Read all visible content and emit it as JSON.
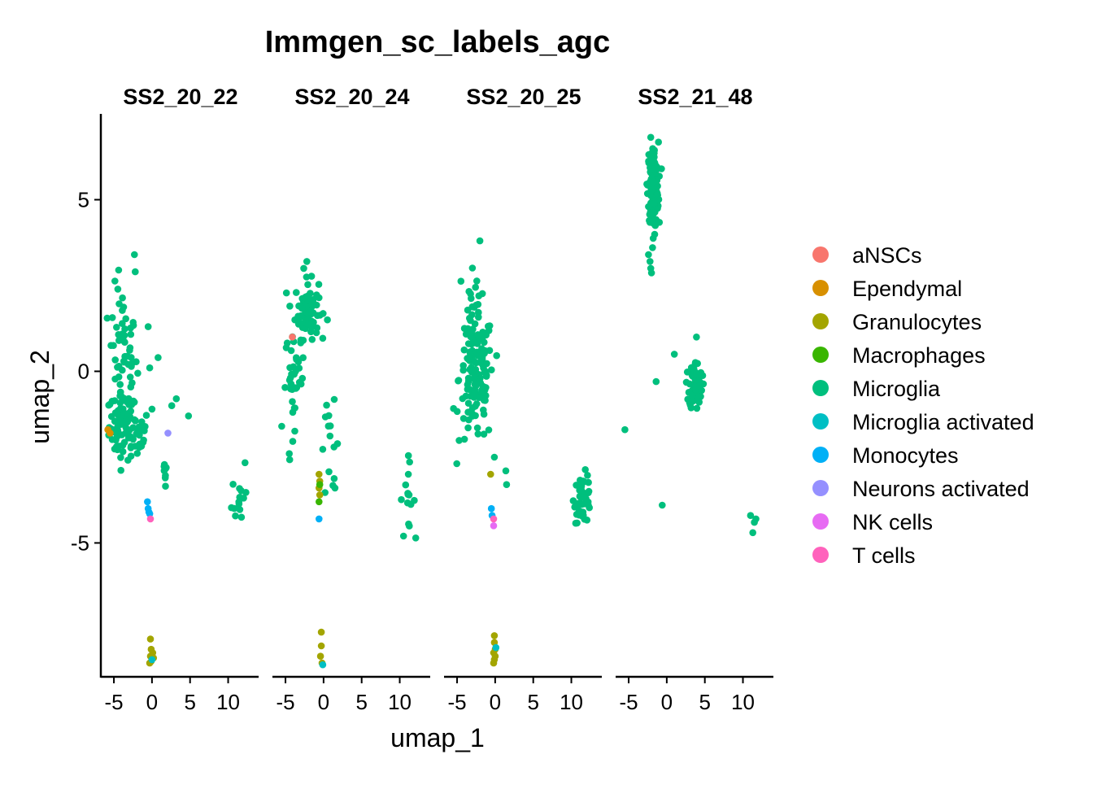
{
  "chart_data": {
    "type": "scatter",
    "title": "Immgen_sc_labels_agc",
    "xlabel": "umap_1",
    "ylabel": "umap_2",
    "xlim": [
      -6.5,
      14
    ],
    "ylim": [
      -8.9,
      7.5
    ],
    "xticks": [
      -5,
      0,
      5,
      10
    ],
    "xtick_labels": [
      "-5",
      "0",
      "5",
      "10"
    ],
    "yticks": [
      5,
      0,
      -5
    ],
    "ytick_labels": [
      "5",
      "0",
      "-5"
    ],
    "legend_position": "right",
    "legend": [
      {
        "label": "aNSCs",
        "color": "#F8766D"
      },
      {
        "label": "Ependymal",
        "color": "#D89000"
      },
      {
        "label": "Granulocytes",
        "color": "#A3A500"
      },
      {
        "label": "Macrophages",
        "color": "#39B600"
      },
      {
        "label": "Microglia",
        "color": "#00BF7D"
      },
      {
        "label": "Microglia activated",
        "color": "#00BFC4"
      },
      {
        "label": "Monocytes",
        "color": "#00B0F6"
      },
      {
        "label": "Neurons activated",
        "color": "#9590FF"
      },
      {
        "label": "NK cells",
        "color": "#E76BF3"
      },
      {
        "label": "T cells",
        "color": "#FF62BC"
      }
    ],
    "panels": [
      {
        "name": "SS2_20_22",
        "clusters": [
          {
            "label": "Microglia",
            "cx": -3.8,
            "cy": -1.6,
            "sx": 1.3,
            "sy": 0.7,
            "n": 70
          },
          {
            "label": "Microglia",
            "cx": -3.8,
            "cy": 0.5,
            "sx": 1.3,
            "sy": 1.4,
            "n": 55
          },
          {
            "label": "Microglia",
            "cx": -2.0,
            "cy": -1.8,
            "sx": 1.2,
            "sy": 0.5,
            "n": 25
          },
          {
            "label": "Microglia",
            "cx": 1.8,
            "cy": -3.0,
            "sx": 0.3,
            "sy": 0.4,
            "n": 8
          },
          {
            "label": "Microglia",
            "cx": 11.5,
            "cy": -3.5,
            "sx": 0.7,
            "sy": 0.8,
            "n": 14
          }
        ],
        "points": [
          {
            "x": -2.3,
            "y": 3.4,
            "label": "Microglia"
          },
          {
            "x": -2.2,
            "y": 2.9,
            "label": "Microglia"
          },
          {
            "x": -0.5,
            "y": 1.3,
            "label": "Microglia"
          },
          {
            "x": -0.3,
            "y": 0.1,
            "label": "Microglia"
          },
          {
            "x": 0.8,
            "y": 0.4,
            "label": "Microglia"
          },
          {
            "x": 3.2,
            "y": -0.8,
            "label": "Microglia"
          },
          {
            "x": 2.6,
            "y": -1.0,
            "label": "Microglia"
          },
          {
            "x": 4.8,
            "y": -1.3,
            "label": "Microglia"
          },
          {
            "x": 0.0,
            "y": -1.1,
            "label": "Microglia"
          },
          {
            "x": -5.8,
            "y": -1.7,
            "label": "Ependymal"
          },
          {
            "x": -5.5,
            "y": -1.8,
            "label": "Ependymal"
          },
          {
            "x": 2.1,
            "y": -1.8,
            "label": "Neurons activated"
          },
          {
            "x": -0.6,
            "y": -3.8,
            "label": "Monocytes"
          },
          {
            "x": -0.5,
            "y": -4.0,
            "label": "Monocytes"
          },
          {
            "x": -0.4,
            "y": -4.1,
            "label": "Monocytes"
          },
          {
            "x": -0.3,
            "y": -4.15,
            "label": "Monocytes"
          },
          {
            "x": -0.2,
            "y": -4.3,
            "label": "T cells"
          },
          {
            "x": -0.2,
            "y": -7.8,
            "label": "Granulocytes"
          },
          {
            "x": -0.1,
            "y": -8.1,
            "label": "Granulocytes"
          },
          {
            "x": 0.1,
            "y": -8.2,
            "label": "Granulocytes"
          },
          {
            "x": -0.2,
            "y": -8.3,
            "label": "Granulocytes"
          },
          {
            "x": 0.2,
            "y": -8.35,
            "label": "Granulocytes"
          },
          {
            "x": -0.1,
            "y": -8.45,
            "label": "Granulocytes"
          },
          {
            "x": -0.3,
            "y": -8.5,
            "label": "Granulocytes"
          },
          {
            "x": 0.0,
            "y": -8.4,
            "label": "Microglia activated"
          }
        ]
      },
      {
        "name": "SS2_20_24",
        "clusters": [
          {
            "label": "Microglia",
            "cx": -2.2,
            "cy": 1.8,
            "sx": 1.1,
            "sy": 0.6,
            "n": 80
          },
          {
            "label": "Microglia",
            "cx": -3.8,
            "cy": -0.2,
            "sx": 0.9,
            "sy": 1.0,
            "n": 35
          },
          {
            "label": "Microglia",
            "cx": 0.8,
            "cy": -2.2,
            "sx": 0.9,
            "sy": 0.9,
            "n": 14
          },
          {
            "label": "Microglia",
            "cx": 11.0,
            "cy": -3.6,
            "sx": 0.7,
            "sy": 0.7,
            "n": 14
          }
        ],
        "points": [
          {
            "x": -2.2,
            "y": 3.2,
            "label": "Microglia"
          },
          {
            "x": -2.6,
            "y": 3.0,
            "label": "Microglia"
          },
          {
            "x": 0.5,
            "y": 1.5,
            "label": "Microglia"
          },
          {
            "x": -5.5,
            "y": -1.6,
            "label": "Microglia"
          },
          {
            "x": -4.5,
            "y": -2.4,
            "label": "Microglia"
          },
          {
            "x": 1.5,
            "y": -3.4,
            "label": "Microglia"
          },
          {
            "x": 10.5,
            "y": -4.8,
            "label": "Microglia"
          },
          {
            "x": -4.1,
            "y": 1.0,
            "label": "aNSCs"
          },
          {
            "x": -0.6,
            "y": -3.0,
            "label": "Granulocytes"
          },
          {
            "x": -0.5,
            "y": -3.2,
            "label": "Granulocytes"
          },
          {
            "x": -0.6,
            "y": -3.4,
            "label": "Granulocytes"
          },
          {
            "x": -0.5,
            "y": -3.6,
            "label": "Granulocytes"
          },
          {
            "x": -0.6,
            "y": -3.8,
            "label": "Macrophages"
          },
          {
            "x": -0.5,
            "y": -3.3,
            "label": "Macrophages"
          },
          {
            "x": -0.6,
            "y": -4.3,
            "label": "Monocytes"
          },
          {
            "x": -0.3,
            "y": -7.6,
            "label": "Granulocytes"
          },
          {
            "x": -0.3,
            "y": -8.0,
            "label": "Granulocytes"
          },
          {
            "x": -0.4,
            "y": -8.3,
            "label": "Granulocytes"
          },
          {
            "x": -0.2,
            "y": -8.5,
            "label": "Granulocytes"
          },
          {
            "x": -0.1,
            "y": -8.55,
            "label": "Microglia activated"
          }
        ]
      },
      {
        "name": "SS2_20_25",
        "clusters": [
          {
            "label": "Microglia",
            "cx": -2.5,
            "cy": -0.2,
            "sx": 1.6,
            "sy": 1.4,
            "n": 140
          },
          {
            "label": "Microglia",
            "cx": -2.5,
            "cy": 2.2,
            "sx": 1.0,
            "sy": 0.6,
            "n": 12
          },
          {
            "label": "Microglia",
            "cx": 11.5,
            "cy": -3.7,
            "sx": 0.8,
            "sy": 0.5,
            "n": 45
          }
        ],
        "points": [
          {
            "x": -2.0,
            "y": 3.8,
            "label": "Microglia"
          },
          {
            "x": -0.1,
            "y": -2.5,
            "label": "Microglia"
          },
          {
            "x": 1.4,
            "y": -2.9,
            "label": "Microglia"
          },
          {
            "x": 1.5,
            "y": -3.3,
            "label": "Microglia"
          },
          {
            "x": -0.6,
            "y": -3.0,
            "label": "Granulocytes"
          },
          {
            "x": -0.5,
            "y": -4.0,
            "label": "Monocytes"
          },
          {
            "x": -0.4,
            "y": -4.2,
            "label": "Monocytes"
          },
          {
            "x": -0.2,
            "y": -4.3,
            "label": "T cells"
          },
          {
            "x": -0.2,
            "y": -4.5,
            "label": "NK cells"
          },
          {
            "x": -0.1,
            "y": -7.7,
            "label": "Granulocytes"
          },
          {
            "x": -0.1,
            "y": -7.9,
            "label": "Granulocytes"
          },
          {
            "x": 0.0,
            "y": -8.1,
            "label": "Granulocytes"
          },
          {
            "x": -0.2,
            "y": -8.2,
            "label": "Granulocytes"
          },
          {
            "x": 0.0,
            "y": -8.3,
            "label": "Granulocytes"
          },
          {
            "x": -0.1,
            "y": -8.4,
            "label": "Granulocytes"
          },
          {
            "x": -0.2,
            "y": -8.5,
            "label": "Granulocytes"
          },
          {
            "x": 0.1,
            "y": -8.05,
            "label": "Microglia activated"
          }
        ]
      },
      {
        "name": "SS2_21_48",
        "clusters": [
          {
            "label": "Microglia",
            "cx": -1.8,
            "cy": 5.4,
            "sx": 0.5,
            "sy": 0.9,
            "n": 160
          },
          {
            "label": "Microglia",
            "cx": 3.8,
            "cy": -0.4,
            "sx": 0.6,
            "sy": 0.5,
            "n": 60
          }
        ],
        "points": [
          {
            "x": -2.2,
            "y": 3.2,
            "label": "Microglia"
          },
          {
            "x": -2.1,
            "y": 3.0,
            "label": "Microglia"
          },
          {
            "x": -2.4,
            "y": 3.4,
            "label": "Microglia"
          },
          {
            "x": 1.0,
            "y": 0.5,
            "label": "Microglia"
          },
          {
            "x": 3.9,
            "y": 1.0,
            "label": "Microglia"
          },
          {
            "x": -1.4,
            "y": -0.3,
            "label": "Microglia"
          },
          {
            "x": -5.5,
            "y": -1.7,
            "label": "Microglia"
          },
          {
            "x": -0.6,
            "y": -3.9,
            "label": "Microglia"
          },
          {
            "x": 11.0,
            "y": -4.2,
            "label": "Microglia"
          },
          {
            "x": 11.5,
            "y": -4.4,
            "label": "Microglia"
          },
          {
            "x": 11.7,
            "y": -4.3,
            "label": "Microglia"
          },
          {
            "x": 11.3,
            "y": -4.7,
            "label": "Microglia"
          }
        ]
      }
    ]
  }
}
